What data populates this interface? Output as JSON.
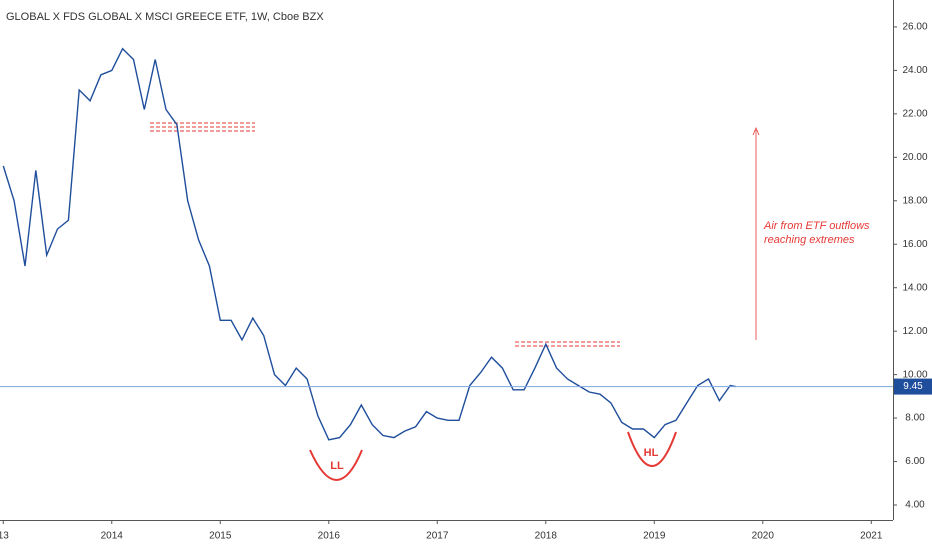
{
  "chart_data": {
    "type": "line",
    "title": "GLOBAL X FDS GLOBAL X MSCI GREECE ETF, 1W, Cboe BZX",
    "x": [
      2013.0,
      2013.1,
      2013.2,
      2013.3,
      2013.4,
      2013.5,
      2013.6,
      2013.7,
      2013.8,
      2013.9,
      2014.0,
      2014.1,
      2014.2,
      2014.3,
      2014.4,
      2014.5,
      2014.6,
      2014.7,
      2014.8,
      2014.9,
      2015.0,
      2015.1,
      2015.2,
      2015.3,
      2015.4,
      2015.5,
      2015.6,
      2015.7,
      2015.8,
      2015.9,
      2016.0,
      2016.1,
      2016.2,
      2016.3,
      2016.4,
      2016.5,
      2016.6,
      2016.7,
      2016.8,
      2016.9,
      2017.0,
      2017.1,
      2017.2,
      2017.3,
      2017.4,
      2017.5,
      2017.6,
      2017.7,
      2017.8,
      2017.9,
      2018.0,
      2018.1,
      2018.2,
      2018.3,
      2018.4,
      2018.5,
      2018.6,
      2018.7,
      2018.8,
      2018.9,
      2019.0,
      2019.1,
      2019.2,
      2019.3,
      2019.4,
      2019.5,
      2019.6,
      2019.7,
      2019.75
    ],
    "values": [
      19.6,
      18.0,
      15.0,
      19.4,
      15.5,
      16.7,
      17.1,
      23.1,
      22.6,
      23.8,
      24.0,
      25.0,
      24.5,
      22.2,
      24.5,
      22.2,
      21.5,
      18.0,
      16.2,
      15.0,
      12.5,
      12.5,
      11.6,
      12.6,
      11.8,
      10.0,
      9.5,
      10.3,
      9.8,
      8.1,
      7.0,
      7.1,
      7.7,
      8.6,
      7.7,
      7.2,
      7.1,
      7.4,
      7.6,
      8.3,
      8.0,
      7.9,
      7.9,
      9.5,
      10.1,
      10.8,
      10.3,
      9.3,
      9.3,
      10.3,
      11.4,
      10.3,
      9.8,
      9.5,
      9.2,
      9.1,
      8.7,
      7.8,
      7.5,
      7.5,
      7.1,
      7.7,
      7.9,
      8.7,
      9.5,
      9.8,
      8.8,
      9.5,
      9.45
    ],
    "color": "#1f4e9c",
    "xlim": [
      2012.97,
      2021.2
    ],
    "xticks": [
      {
        "value": 2013,
        "label": "13"
      },
      2014,
      2015,
      2016,
      2017,
      2018,
      2019,
      2020,
      2021
    ],
    "ylim": [
      3.31,
      27.24
    ],
    "yticks": [
      {
        "value": 4,
        "label": "4.00"
      },
      {
        "value": 6,
        "label": "6.00"
      },
      {
        "value": 8,
        "label": "8.00"
      },
      {
        "value": 10,
        "label": "10.00"
      },
      {
        "value": 12,
        "label": "12.00"
      },
      {
        "value": 14,
        "label": "14.00"
      },
      {
        "value": 16,
        "label": "16.00"
      },
      {
        "value": 18,
        "label": "18.00"
      },
      {
        "value": 20,
        "label": "20.00"
      },
      {
        "value": 22,
        "label": "22.00"
      },
      {
        "value": 24,
        "label": "24.00"
      },
      {
        "value": 26,
        "label": "26.00"
      }
    ],
    "last_price": {
      "value": 9.45,
      "label": "9.45"
    },
    "note_lines": [
      "Air from ETF outflows",
      "reaching extremes"
    ],
    "low_label": "LL",
    "higher_low_label": "HL"
  }
}
